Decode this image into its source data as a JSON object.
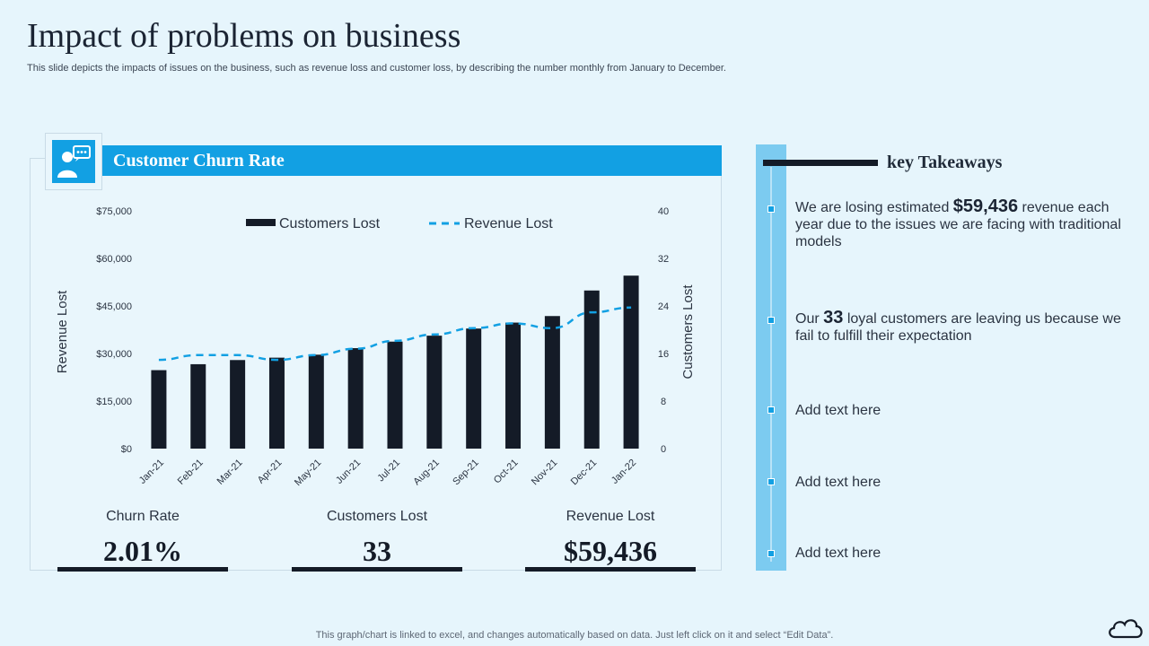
{
  "header": {
    "title": "Impact of problems on business",
    "subtitle": "This slide depicts the impacts of issues on the business, such as revenue loss and customer loss, by describing the number monthly from January to December."
  },
  "panel": {
    "title": "Customer Churn Rate",
    "icon": "customer-presentation-icon"
  },
  "chart_data": {
    "type": "bar",
    "title": "Customer Churn Rate",
    "categories": [
      "Jan-21",
      "Feb-21",
      "Mar-21",
      "Apr-21",
      "May-21",
      "Jun-21",
      "Jul-21",
      "Aug-21",
      "Sep-21",
      "Oct-21",
      "Nov-21",
      "Dec-21",
      "Jan-22"
    ],
    "series": [
      {
        "name": "Customers Lost",
        "kind": "bar",
        "axis": "right",
        "color": "#141b27",
        "values": [
          13.2,
          14.2,
          14.9,
          15.3,
          15.8,
          16.9,
          18.0,
          19.0,
          20.2,
          21.2,
          22.3,
          26.6,
          29.1
        ]
      },
      {
        "name": "Revenue Lost",
        "kind": "line-dashed",
        "axis": "left",
        "color": "#12a0e3",
        "values": [
          28000,
          29500,
          29500,
          28000,
          29500,
          31500,
          34000,
          36000,
          38000,
          39500,
          38000,
          43000,
          44500
        ]
      }
    ],
    "yaxis_left": {
      "label": "Revenue Lost",
      "ylim": [
        0,
        75000
      ],
      "ticks": [
        "$0",
        "$15,000",
        "$30,000",
        "$45,000",
        "$60,000",
        "$75,000"
      ]
    },
    "yaxis_right": {
      "label": "Customers Lost",
      "ylim": [
        0,
        40
      ],
      "ticks": [
        "0",
        "8",
        "16",
        "24",
        "32",
        "40"
      ]
    },
    "legend": {
      "position": "top",
      "entries": [
        "Customers Lost",
        "Revenue Lost"
      ]
    }
  },
  "metrics": [
    {
      "label": "Churn Rate",
      "value": "2.01%"
    },
    {
      "label": "Customers Lost",
      "value": "33"
    },
    {
      "label": "Revenue Lost",
      "value": "$59,436"
    }
  ],
  "takeaways": {
    "title": "key Takeaways",
    "items": [
      {
        "pre": "We are losing estimated ",
        "bold": "$59,436",
        "post": " revenue each year due to the issues we are facing with traditional models"
      },
      {
        "pre": "Our ",
        "bold": "33",
        "post": " loyal customers are leaving us because we fail to fulfill their expectation"
      },
      {
        "pre": "Add text here",
        "bold": "",
        "post": ""
      },
      {
        "pre": "Add text here",
        "bold": "",
        "post": ""
      },
      {
        "pre": "Add text here",
        "bold": "",
        "post": ""
      }
    ]
  },
  "footer": {
    "note": "This graph/chart is linked to excel, and changes automatically based on data. Just left click on it and select “Edit Data”.",
    "icon": "cloud-icon"
  },
  "colors": {
    "accent": "#12a0e3",
    "dark": "#141b27",
    "rail": "#7ccbf0",
    "background": "#e6f5fc"
  }
}
